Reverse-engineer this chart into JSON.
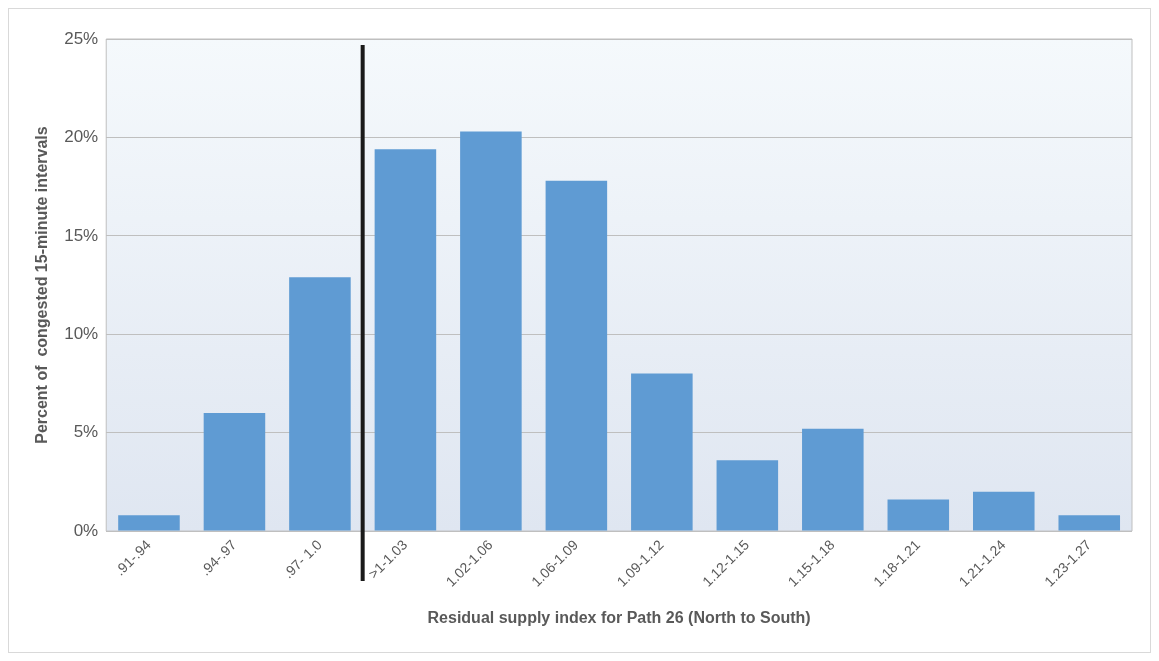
{
  "chart_data": {
    "type": "bar",
    "xlabel": "Residual supply index for Path 26 (North to South)",
    "ylabel": "Percent of  congested 15-minute intervals",
    "categories": [
      ".91-.94",
      ".94-.97",
      ".97- 1.0",
      ">1-1.03",
      "1.02-1.06",
      "1.06-1.09",
      "1.09-1.12",
      "1.12-1.15",
      "1.15-1.18",
      "1.18-1.21",
      "1.21-1.24",
      "1.23-1.27"
    ],
    "values": [
      0.8,
      6.0,
      12.9,
      19.4,
      20.3,
      17.8,
      8.0,
      3.6,
      5.2,
      1.6,
      2.0,
      0.8
    ],
    "color": "#5f9bd3",
    "ylim": [
      0,
      25
    ],
    "yticks": [
      {
        "value": 0,
        "label": "0%"
      },
      {
        "value": 5,
        "label": "5%"
      },
      {
        "value": 10,
        "label": "10%"
      },
      {
        "value": 15,
        "label": "15%"
      },
      {
        "value": 20,
        "label": "20%"
      },
      {
        "value": 25,
        "label": "25%"
      }
    ],
    "grid": "y",
    "legend": false,
    "ref_lines": [
      {
        "axis": "x",
        "value": ">1-1.03",
        "color": "#1a1a1a"
      }
    ]
  }
}
